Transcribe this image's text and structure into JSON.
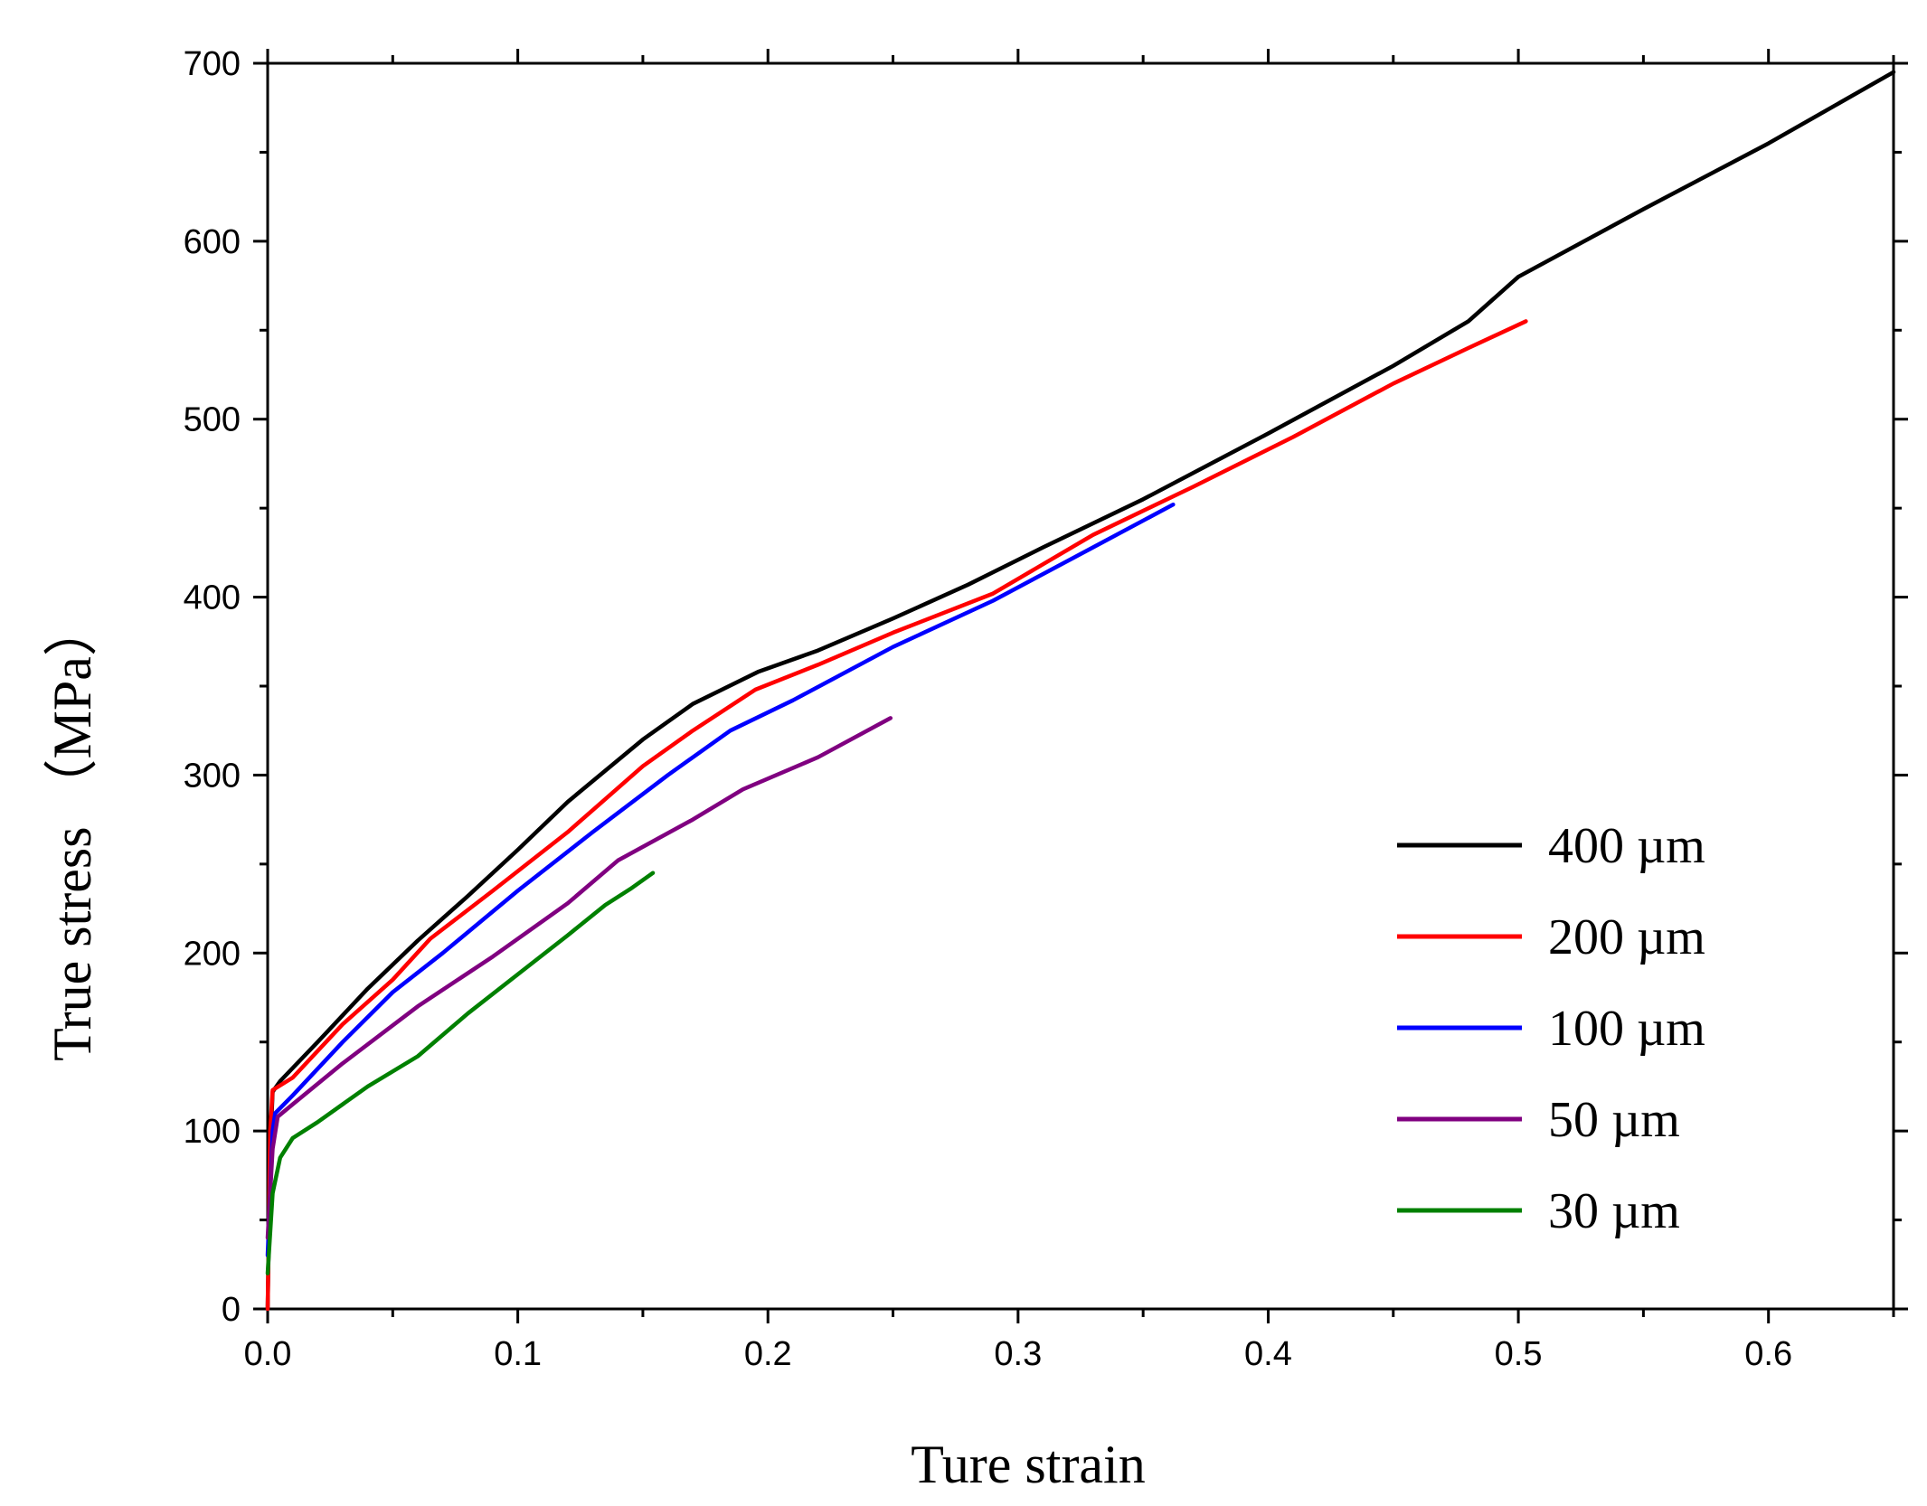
{
  "chart_data": {
    "type": "line",
    "title": "",
    "xlabel": "Ture strain",
    "ylabel": "True stress （MPa）",
    "xlim": [
      0,
      0.65
    ],
    "ylim": [
      0,
      700
    ],
    "xticks": [
      "0.0",
      "0.1",
      "0.2",
      "0.3",
      "0.4",
      "0.5",
      "0.6"
    ],
    "yticks": [
      "0",
      "100",
      "200",
      "300",
      "400",
      "500",
      "600",
      "700"
    ],
    "legend_position": "bottom-right",
    "series": [
      {
        "name": "400 µm",
        "color": "#000000",
        "points": [
          [
            0,
            0
          ],
          [
            0.001,
            90
          ],
          [
            0.002,
            122
          ],
          [
            0.005,
            128
          ],
          [
            0.02,
            150
          ],
          [
            0.04,
            180
          ],
          [
            0.06,
            207
          ],
          [
            0.08,
            232
          ],
          [
            0.1,
            258
          ],
          [
            0.12,
            285
          ],
          [
            0.15,
            320
          ],
          [
            0.17,
            340
          ],
          [
            0.196,
            358
          ],
          [
            0.22,
            370
          ],
          [
            0.25,
            388
          ],
          [
            0.28,
            407
          ],
          [
            0.31,
            428
          ],
          [
            0.35,
            455
          ],
          [
            0.4,
            492
          ],
          [
            0.45,
            530
          ],
          [
            0.48,
            555
          ],
          [
            0.5,
            580
          ],
          [
            0.55,
            618
          ],
          [
            0.6,
            655
          ],
          [
            0.65,
            695
          ]
        ]
      },
      {
        "name": "200 µm",
        "color": "#ff0000",
        "points": [
          [
            0,
            0
          ],
          [
            0.001,
            100
          ],
          [
            0.002,
            123
          ],
          [
            0.01,
            130
          ],
          [
            0.03,
            160
          ],
          [
            0.05,
            185
          ],
          [
            0.065,
            208
          ],
          [
            0.09,
            235
          ],
          [
            0.12,
            268
          ],
          [
            0.15,
            305
          ],
          [
            0.17,
            325
          ],
          [
            0.195,
            348
          ],
          [
            0.22,
            362
          ],
          [
            0.25,
            380
          ],
          [
            0.29,
            402
          ],
          [
            0.33,
            435
          ],
          [
            0.37,
            462
          ],
          [
            0.41,
            490
          ],
          [
            0.45,
            520
          ],
          [
            0.48,
            540
          ],
          [
            0.503,
            555
          ]
        ]
      },
      {
        "name": "100 µm",
        "color": "#0000ff",
        "points": [
          [
            0,
            30
          ],
          [
            0.002,
            100
          ],
          [
            0.003,
            110
          ],
          [
            0.01,
            120
          ],
          [
            0.03,
            150
          ],
          [
            0.05,
            178
          ],
          [
            0.07,
            200
          ],
          [
            0.1,
            235
          ],
          [
            0.13,
            268
          ],
          [
            0.16,
            300
          ],
          [
            0.185,
            325
          ],
          [
            0.21,
            342
          ],
          [
            0.25,
            372
          ],
          [
            0.29,
            398
          ],
          [
            0.33,
            428
          ],
          [
            0.362,
            452
          ]
        ]
      },
      {
        "name": "50 µm",
        "color": "#800080",
        "points": [
          [
            0,
            40
          ],
          [
            0.002,
            90
          ],
          [
            0.004,
            108
          ],
          [
            0.01,
            115
          ],
          [
            0.03,
            138
          ],
          [
            0.06,
            170
          ],
          [
            0.09,
            198
          ],
          [
            0.12,
            228
          ],
          [
            0.14,
            252
          ],
          [
            0.17,
            275
          ],
          [
            0.19,
            292
          ],
          [
            0.22,
            310
          ],
          [
            0.249,
            332
          ]
        ]
      },
      {
        "name": "30 µm",
        "color": "#008000",
        "points": [
          [
            0,
            20
          ],
          [
            0.002,
            65
          ],
          [
            0.005,
            85
          ],
          [
            0.01,
            96
          ],
          [
            0.02,
            105
          ],
          [
            0.04,
            125
          ],
          [
            0.06,
            142
          ],
          [
            0.08,
            166
          ],
          [
            0.1,
            188
          ],
          [
            0.12,
            210
          ],
          [
            0.135,
            227
          ],
          [
            0.145,
            236
          ],
          [
            0.154,
            245
          ]
        ]
      }
    ]
  }
}
